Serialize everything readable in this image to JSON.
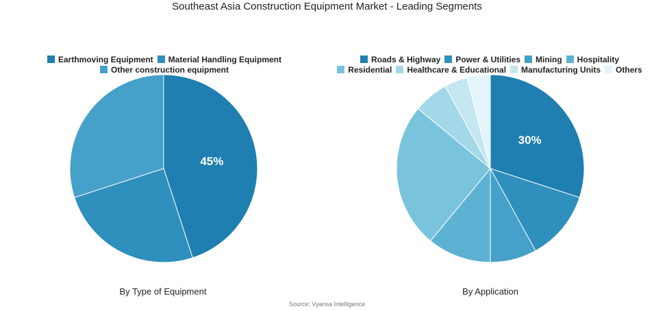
{
  "title": "Southeast Asia Construction Equipment Market - Leading Segments",
  "source": "Source: Vyansa Intelligence",
  "chart_data": [
    {
      "type": "pie",
      "subtitle": "By Type of Equipment",
      "legend_position": "top",
      "categories": [
        "Earthmoving Equipment",
        "Material Handling Equipment",
        "Other construction equipment"
      ],
      "values": [
        45,
        25,
        30
      ],
      "colors": [
        "#1f7fb0",
        "#2f8fbd",
        "#45a1c9"
      ],
      "data_labels": [
        "45%",
        "",
        ""
      ]
    },
    {
      "type": "pie",
      "subtitle": "By Application",
      "legend_position": "top",
      "categories": [
        "Roads & Highway",
        "Power & Utilities",
        "Mining",
        "Hospitality",
        "Residential",
        "Healthcare & Educational",
        "Manufacturing Units",
        "Others"
      ],
      "values": [
        30,
        12,
        8,
        11,
        25,
        6,
        4,
        4
      ],
      "colors": [
        "#1f7fb0",
        "#2f8fbd",
        "#45a1c9",
        "#5db2d3",
        "#7ac3dd",
        "#a3d8e8",
        "#c4e7f1",
        "#e3f5fa"
      ],
      "data_labels": [
        "30%",
        "",
        "",
        "",
        "",
        "",
        "",
        ""
      ]
    }
  ]
}
